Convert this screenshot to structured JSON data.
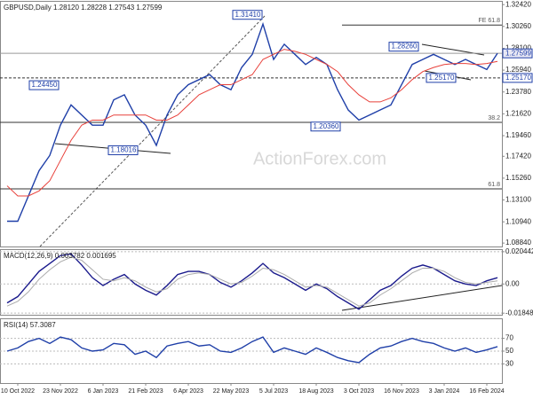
{
  "chart_data": [
    {
      "type": "line",
      "title": "GBPUSD,Daily 1.28120 1.28228 1.27543 1.27599",
      "categories": [
        null,
        "10 Oct 2022",
        null,
        null,
        null,
        "23 Nov 2022",
        null,
        null,
        null,
        "6 Jan 2023",
        null,
        null,
        null,
        "21 Feb 2023",
        null,
        null,
        null,
        "6 Apr 2023",
        null,
        null,
        null,
        "22 May 2023",
        null,
        null,
        null,
        "5 Jul 2023",
        null,
        null,
        null,
        "18 Aug 2023",
        null,
        null,
        null,
        "3 Oct 2023",
        null,
        null,
        null,
        "16 Nov 2023",
        null,
        null,
        null,
        "3 Jan 2024",
        null,
        null,
        null,
        "16 Feb 2024",
        null
      ],
      "series": [
        {
          "color": "#1f3fa8",
          "values": [
            1.11,
            1.11,
            1.135,
            1.16,
            1.175,
            1.205,
            1.225,
            1.215,
            1.205,
            1.205,
            1.23,
            1.235,
            1.215,
            1.205,
            1.185,
            1.215,
            1.235,
            1.245,
            1.25,
            1.255,
            1.245,
            1.24,
            1.262,
            1.275,
            1.305,
            1.27,
            1.285,
            1.275,
            1.265,
            1.272,
            1.265,
            1.24,
            1.22,
            1.21,
            1.215,
            1.22,
            1.225,
            1.245,
            1.265,
            1.27,
            1.275,
            1.27,
            1.265,
            1.27,
            1.265,
            1.26,
            1.276
          ]
        },
        {
          "color": "#e8403a",
          "values": [
            1.145,
            1.135,
            1.135,
            1.14,
            1.15,
            1.17,
            1.19,
            1.205,
            1.21,
            1.21,
            1.215,
            1.215,
            1.215,
            1.215,
            1.21,
            1.21,
            1.215,
            1.225,
            1.235,
            1.24,
            1.245,
            1.245,
            1.25,
            1.255,
            1.27,
            1.275,
            1.28,
            1.278,
            1.275,
            1.27,
            1.265,
            1.258,
            1.245,
            1.235,
            1.228,
            1.228,
            1.232,
            1.24,
            1.25,
            1.258,
            1.262,
            1.265,
            1.266,
            1.266,
            1.265,
            1.266,
            1.268
          ]
        }
      ],
      "ylim": [
        1.085,
        1.327
      ],
      "yticks": [
        {
          "value": 1.3242,
          "label": "1.32420"
        },
        {
          "value": 1.3026,
          "label": "1.30260"
        },
        {
          "value": 1.281,
          "label": "1.28100"
        },
        {
          "value": 1.2594,
          "label": "1.25940"
        },
        {
          "value": 1.2378,
          "label": "1.23780"
        },
        {
          "value": 1.2162,
          "label": "1.21620"
        },
        {
          "value": 1.1946,
          "label": "1.19460"
        },
        {
          "value": 1.1742,
          "label": "1.17420"
        },
        {
          "value": 1.1526,
          "label": "1.15260"
        },
        {
          "value": 1.131,
          "label": "1.13100"
        },
        {
          "value": 1.1094,
          "label": "1.10940"
        },
        {
          "value": 1.0884,
          "label": "1.08840"
        }
      ],
      "price_markers": [
        {
          "value": 1.27599,
          "label": "1.27599"
        },
        {
          "value": 1.2517,
          "label": "1.25170"
        }
      ],
      "levels": [
        {
          "value": 1.304,
          "label": "FE 61.8"
        },
        {
          "value": 1.2077,
          "label": "38.2"
        },
        {
          "value": 1.142,
          "label": "61.8"
        }
      ],
      "annotations": [
        {
          "value": 1.3141,
          "label": "1.31410"
        },
        {
          "value": 1.2826,
          "label": "1.28260"
        },
        {
          "value": 1.2445,
          "label": "1.24450"
        },
        {
          "value": 1.2517,
          "label": "1.25170"
        },
        {
          "value": 1.2036,
          "label": "1.20360"
        },
        {
          "value": 1.18016,
          "label": "1.18016"
        }
      ],
      "watermark": "ActionForex.com"
    },
    {
      "type": "line",
      "title": "MACD(12,26,9) 0.003782 0.001695",
      "series": [
        {
          "color": "#1a1a8c",
          "values": [
            -0.012,
            -0.008,
            0.0,
            0.008,
            0.013,
            0.018,
            0.019,
            0.012,
            0.004,
            -0.001,
            0.003,
            0.006,
            0.0,
            -0.004,
            -0.007,
            -0.001,
            0.006,
            0.008,
            0.008,
            0.006,
            0.001,
            -0.002,
            0.002,
            0.007,
            0.013,
            0.007,
            0.004,
            0.0,
            -0.004,
            0.0,
            -0.003,
            -0.008,
            -0.012,
            -0.016,
            -0.01,
            -0.004,
            -0.001,
            0.005,
            0.01,
            0.012,
            0.01,
            0.006,
            0.002,
            0.0,
            -0.001,
            0.002,
            0.004
          ]
        },
        {
          "color": "#aaaaaa",
          "values": [
            -0.014,
            -0.011,
            -0.005,
            0.003,
            0.009,
            0.014,
            0.017,
            0.015,
            0.009,
            0.003,
            0.002,
            0.004,
            0.002,
            -0.002,
            -0.005,
            -0.003,
            0.003,
            0.006,
            0.007,
            0.006,
            0.003,
            0.0,
            0.001,
            0.005,
            0.01,
            0.009,
            0.006,
            0.002,
            -0.002,
            -0.001,
            -0.002,
            -0.006,
            -0.01,
            -0.014,
            -0.012,
            -0.007,
            -0.003,
            0.002,
            0.007,
            0.01,
            0.01,
            0.008,
            0.004,
            0.001,
            0.0,
            0.001,
            0.002
          ]
        }
      ],
      "ylim": [
        -0.0195,
        0.0215
      ],
      "yticks": [
        {
          "value": 0.020442,
          "label": "0.020442"
        },
        {
          "value": 0,
          "label": "0.00"
        },
        {
          "value": -0.01848,
          "label": "-0.01848"
        }
      ]
    },
    {
      "type": "line",
      "title": "RSI(14) 57.3087",
      "series": [
        {
          "color": "#1f3fa8",
          "values": [
            50,
            55,
            65,
            70,
            62,
            72,
            68,
            55,
            50,
            52,
            62,
            60,
            45,
            50,
            40,
            58,
            62,
            65,
            58,
            60,
            50,
            48,
            55,
            65,
            72,
            48,
            55,
            50,
            45,
            55,
            48,
            40,
            35,
            32,
            45,
            55,
            58,
            65,
            70,
            65,
            62,
            55,
            50,
            55,
            48,
            52,
            57
          ]
        }
      ],
      "ylim": [
        0,
        100
      ],
      "yticks": [
        70,
        50,
        30
      ]
    }
  ]
}
